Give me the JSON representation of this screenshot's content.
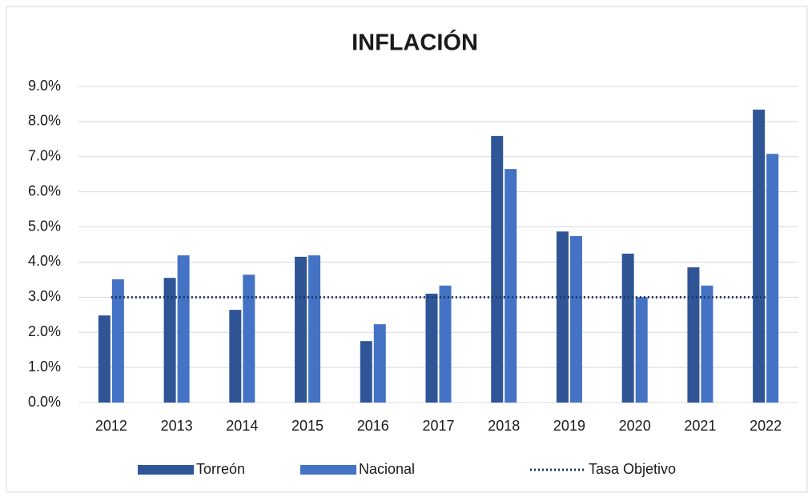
{
  "chart_data": {
    "type": "bar",
    "title": "INFLACIÓN",
    "categories": [
      "2012",
      "2013",
      "2014",
      "2015",
      "2016",
      "2017",
      "2018",
      "2019",
      "2020",
      "2021",
      "2022"
    ],
    "series": [
      {
        "name": "Torreón",
        "color": "#2f5597",
        "values": [
          2.48,
          3.55,
          2.64,
          4.15,
          1.75,
          3.1,
          7.59,
          4.87,
          4.24,
          3.85,
          8.34
        ]
      },
      {
        "name": "Nacional",
        "color": "#4472c4",
        "values": [
          3.51,
          4.19,
          3.64,
          4.19,
          2.23,
          3.33,
          6.65,
          4.74,
          3.0,
          3.33,
          7.08
        ]
      },
      {
        "name": "Tasa Objetivo",
        "color": "#203864",
        "type": "line",
        "style": "dotted",
        "values": [
          3,
          3,
          3,
          3,
          3,
          3,
          3,
          3,
          3,
          3,
          3
        ]
      }
    ],
    "ylim": [
      0,
      9
    ],
    "yticks": [
      {
        "value": 0,
        "label": "0.0%"
      },
      {
        "value": 1,
        "label": "1.0%"
      },
      {
        "value": 2,
        "label": "2.0%"
      },
      {
        "value": 3,
        "label": "3.0%"
      },
      {
        "value": 4,
        "label": "4.0%"
      },
      {
        "value": 5,
        "label": "5.0%"
      },
      {
        "value": 6,
        "label": "6.0%"
      },
      {
        "value": 7,
        "label": "7.0%"
      },
      {
        "value": 8,
        "label": "8.0%"
      },
      {
        "value": 9,
        "label": "9.0%"
      }
    ],
    "grid": true,
    "legend": "bottom"
  }
}
